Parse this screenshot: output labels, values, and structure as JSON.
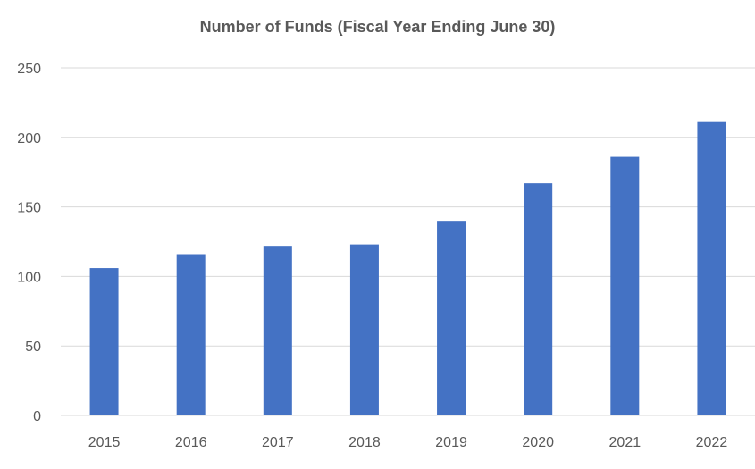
{
  "chart_data": {
    "type": "bar",
    "title": "Number of Funds (Fiscal Year Ending June 30)",
    "xlabel": "",
    "ylabel": "",
    "categories": [
      "2015",
      "2016",
      "2017",
      "2018",
      "2019",
      "2020",
      "2021",
      "2022"
    ],
    "values": [
      106,
      116,
      122,
      123,
      140,
      167,
      186,
      211
    ],
    "ylim": [
      0,
      250
    ],
    "yticks": [
      0,
      50,
      100,
      150,
      200,
      250
    ],
    "grid": true,
    "legend": "none",
    "colors": {
      "bar": "#4472C4",
      "grid": "#D9D9D9",
      "text": "#595959",
      "title": "#595959"
    }
  }
}
